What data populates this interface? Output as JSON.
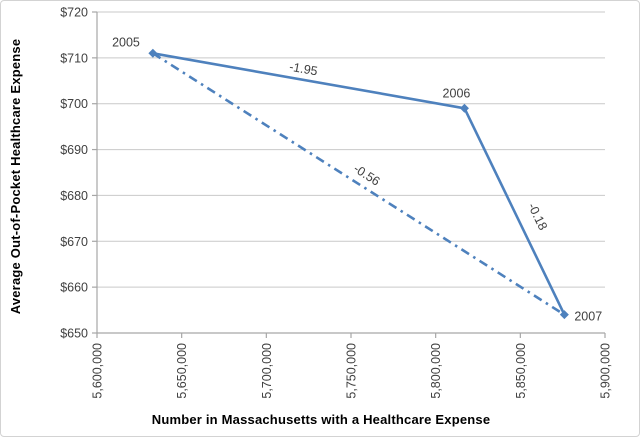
{
  "window": {
    "background": "#ffffff",
    "border_color": "#d3d3d3"
  },
  "chart_data": {
    "type": "line",
    "title": "",
    "xlabel": "Number in Massachusetts with a Healthcare Expense",
    "ylabel": "Average Out-of-Pocket Healthcare Expense",
    "xlim": [
      5600000,
      5900000
    ],
    "ylim": [
      650,
      720
    ],
    "grid": "horizontal",
    "legend": "none",
    "colors": {
      "line": "#4e81bd",
      "marker": "#4e81bd",
      "gridline": "#c9c9c9",
      "axis": "#a6a6a6",
      "tick_text": "#404040",
      "annotation_text": "#404040"
    },
    "x_ticks": [
      {
        "value": 5600000,
        "label": "5,600,000"
      },
      {
        "value": 5650000,
        "label": "5,650,000"
      },
      {
        "value": 5700000,
        "label": "5,700,000"
      },
      {
        "value": 5750000,
        "label": "5,750,000"
      },
      {
        "value": 5800000,
        "label": "5,800,000"
      },
      {
        "value": 5850000,
        "label": "5,850,000"
      },
      {
        "value": 5900000,
        "label": "5,900,000"
      }
    ],
    "y_ticks": [
      {
        "value": 650,
        "label": "$650"
      },
      {
        "value": 660,
        "label": "$660"
      },
      {
        "value": 670,
        "label": "$670"
      },
      {
        "value": 680,
        "label": "$680"
      },
      {
        "value": 690,
        "label": "$690"
      },
      {
        "value": 700,
        "label": "$700"
      },
      {
        "value": 710,
        "label": "$710"
      },
      {
        "value": 720,
        "label": "$720"
      }
    ],
    "series": [
      {
        "name": "year-over-year",
        "style": "solid",
        "markers": true,
        "points": [
          {
            "year": "2005",
            "x": 5633000,
            "y": 711,
            "label_placement": "above-left"
          },
          {
            "year": "2006",
            "x": 5817000,
            "y": 699,
            "label_placement": "above"
          },
          {
            "year": "2007",
            "x": 5876000,
            "y": 654,
            "label_placement": "right"
          }
        ]
      },
      {
        "name": "trend-2005-to-2007",
        "style": "dash-dot",
        "markers": false,
        "points": [
          {
            "x": 5633000,
            "y": 711
          },
          {
            "x": 5876000,
            "y": 654
          }
        ]
      }
    ],
    "annotations": [
      {
        "text": "-1.95",
        "x": 5721500,
        "y": 706.7,
        "rotate": 10
      },
      {
        "text": "-0.56",
        "x": 5758000,
        "y": 683.7,
        "rotate": 33
      },
      {
        "text": "-0.18",
        "x": 5858000,
        "y": 675.0,
        "rotate": 64
      }
    ]
  }
}
